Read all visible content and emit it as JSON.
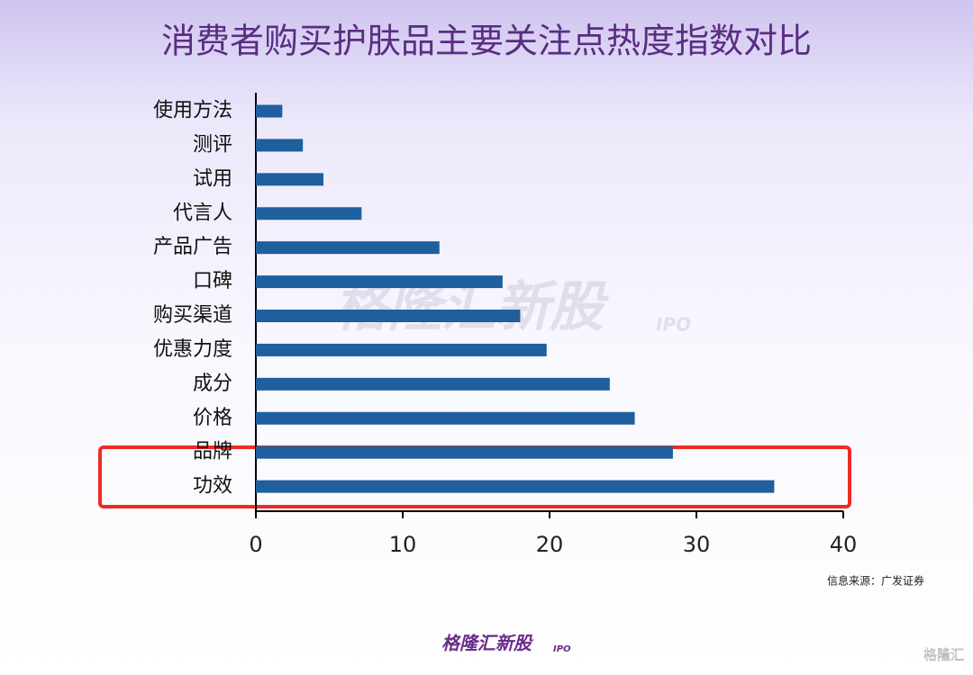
{
  "chart_data": {
    "type": "hbar",
    "title": "消费者购买护肤品主要关注点热度指数对比",
    "categories": [
      "使用方法",
      "测评",
      "试用",
      "代言人",
      "产品广告",
      "口碑",
      "购买渠道",
      "优惠力度",
      "成分",
      "价格",
      "品牌",
      "功效"
    ],
    "values": [
      1.8,
      3.2,
      4.6,
      7.2,
      12.5,
      16.8,
      18.0,
      19.8,
      24.1,
      25.8,
      28.4,
      35.3
    ],
    "color": "#1f5f9e",
    "xlim": [
      0,
      40
    ],
    "xticks": [
      0,
      10,
      20,
      30,
      40
    ],
    "source": "信息来源：广发证券",
    "watermark": "格隆汇新股",
    "watermark_sub": "IPO",
    "footer_logo": "格隆汇新股",
    "footer_logo_sub": "IPO",
    "corner_logo": "格隆汇"
  }
}
